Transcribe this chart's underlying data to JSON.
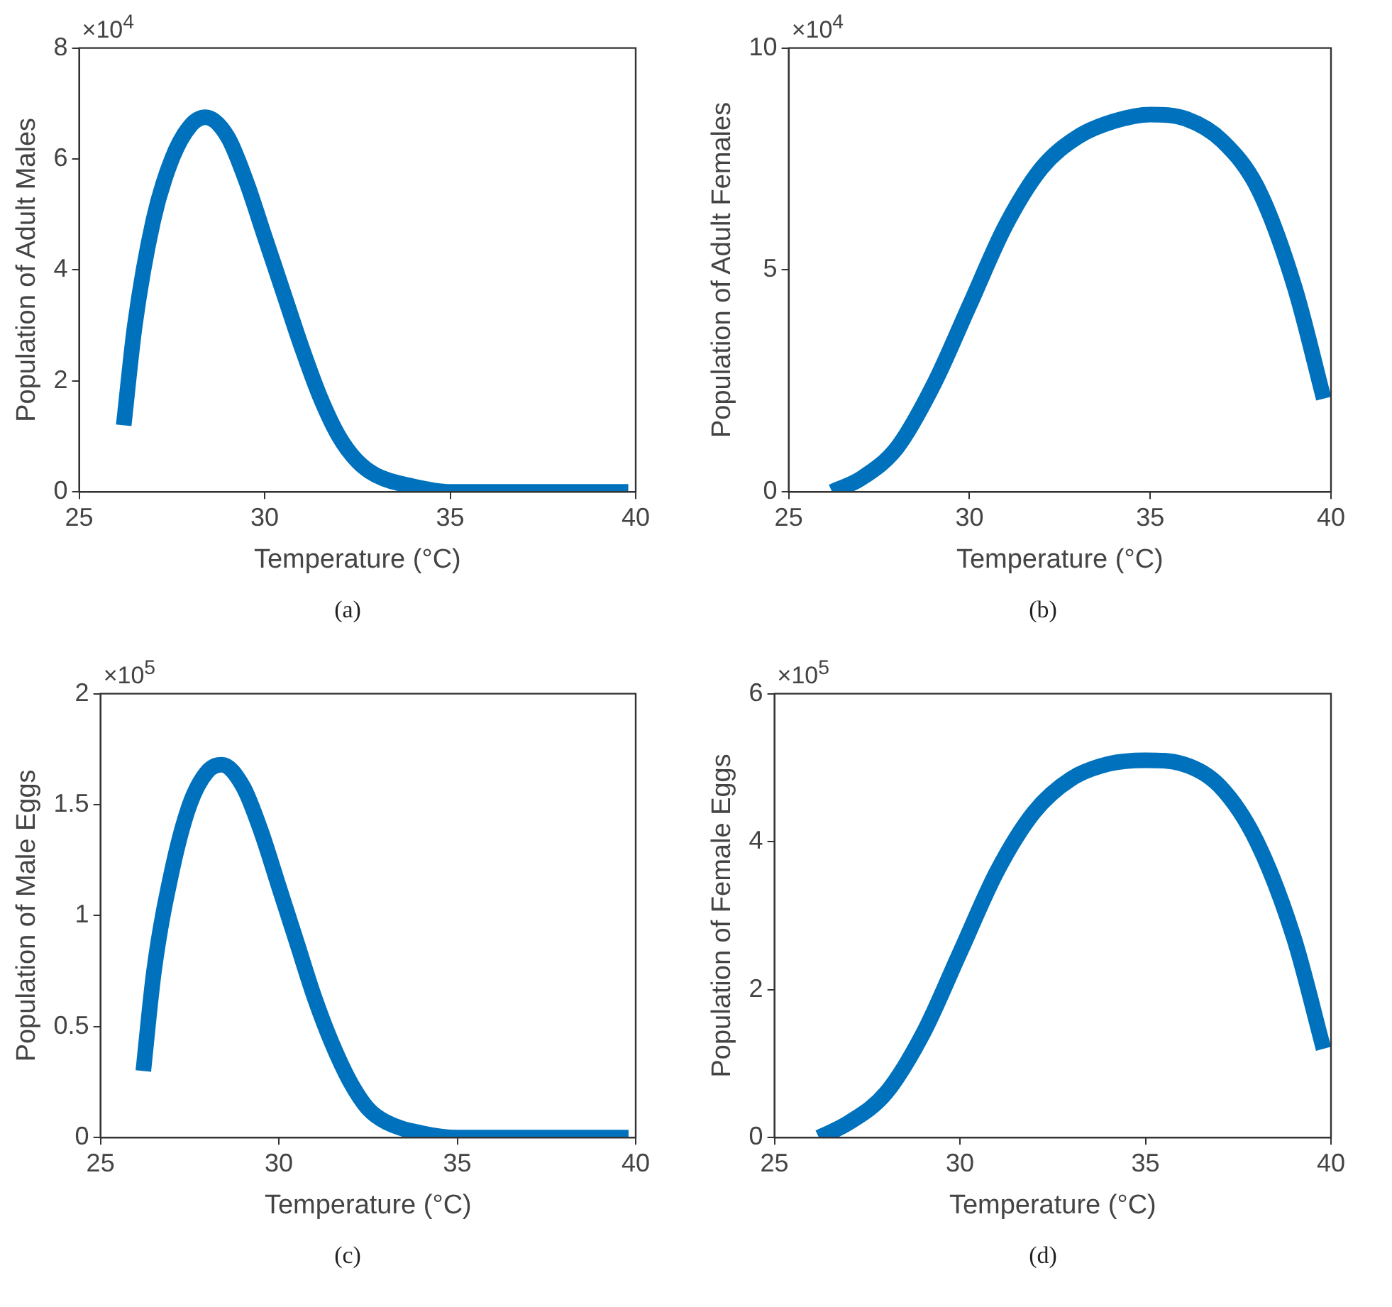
{
  "chart_data": [
    {
      "type": "line",
      "xlabel": "Temperature (°C)",
      "ylabel": "Population of Adult Males",
      "annotations": [
        "×10$^{4}$",
        "(a)"
      ],
      "xlim": [
        25,
        40
      ],
      "xticks": [
        25,
        30,
        35,
        40
      ],
      "ylim": [
        0,
        8
      ],
      "yticks": [
        0,
        2,
        4,
        6,
        8
      ],
      "grid": false,
      "legend": false,
      "marker": "none",
      "line_style": "solid",
      "series": [
        {
          "color": "#0072bd",
          "x": [
            26.2,
            26.5,
            27,
            27.5,
            28,
            28.4,
            29,
            29.5,
            30,
            30.5,
            31,
            31.5,
            32,
            32.5,
            33,
            34,
            35,
            36,
            38,
            39.8
          ],
          "values": [
            1.2,
            3.0,
            4.9,
            6.0,
            6.6,
            6.75,
            6.4,
            5.6,
            4.6,
            3.6,
            2.6,
            1.7,
            1.0,
            0.55,
            0.3,
            0.1,
            0,
            0,
            0,
            0
          ]
        }
      ]
    },
    {
      "type": "line",
      "xlabel": "Temperature (°C)",
      "ylabel": "Population of Adult Females",
      "annotations": [
        "×10$^{4}$",
        "(b)"
      ],
      "xlim": [
        25,
        40
      ],
      "xticks": [
        25,
        30,
        35,
        40
      ],
      "ylim": [
        0,
        10
      ],
      "yticks": [
        0,
        5,
        10
      ],
      "grid": false,
      "legend": false,
      "marker": "none",
      "line_style": "solid",
      "series": [
        {
          "color": "#0072bd",
          "x": [
            26.2,
            27,
            28,
            29,
            30,
            31,
            32,
            33,
            34,
            35,
            36,
            37,
            38,
            39,
            39.8
          ],
          "values": [
            0,
            0.3,
            1.0,
            2.4,
            4.2,
            6.0,
            7.3,
            8.0,
            8.35,
            8.5,
            8.4,
            7.9,
            6.8,
            4.6,
            2.1
          ]
        }
      ]
    },
    {
      "type": "line",
      "xlabel": "Temperature (°C)",
      "ylabel": "Population of Male Eggs",
      "annotations": [
        "×10$^{5}$",
        "(c)"
      ],
      "xlim": [
        25,
        40
      ],
      "xticks": [
        25,
        30,
        35,
        40
      ],
      "ylim": [
        0,
        2
      ],
      "yticks": [
        0,
        0.5,
        1,
        1.5,
        2
      ],
      "grid": false,
      "legend": false,
      "marker": "none",
      "line_style": "solid",
      "series": [
        {
          "color": "#0072bd",
          "x": [
            26.2,
            26.5,
            27,
            27.5,
            28,
            28.4,
            29,
            29.5,
            30,
            30.5,
            31,
            31.5,
            32,
            32.5,
            33,
            34,
            35,
            36,
            38,
            39.8
          ],
          "values": [
            0.3,
            0.75,
            1.2,
            1.5,
            1.65,
            1.68,
            1.58,
            1.38,
            1.13,
            0.88,
            0.63,
            0.42,
            0.25,
            0.13,
            0.07,
            0.02,
            0,
            0,
            0,
            0
          ]
        }
      ]
    },
    {
      "type": "line",
      "xlabel": "Temperature (°C)",
      "ylabel": "Population of Female Eggs",
      "annotations": [
        "×10$^{5}$",
        "(d)"
      ],
      "xlim": [
        25,
        40
      ],
      "xticks": [
        25,
        30,
        35,
        40
      ],
      "ylim": [
        0,
        6
      ],
      "yticks": [
        0,
        2,
        4,
        6
      ],
      "grid": false,
      "legend": false,
      "marker": "none",
      "line_style": "solid",
      "series": [
        {
          "color": "#0072bd",
          "x": [
            26.2,
            27,
            28,
            29,
            30,
            31,
            32,
            33,
            34,
            35,
            36,
            37,
            38,
            39,
            39.8
          ],
          "values": [
            0,
            0.2,
            0.6,
            1.4,
            2.5,
            3.6,
            4.4,
            4.85,
            5.05,
            5.1,
            5.05,
            4.75,
            4.0,
            2.7,
            1.2
          ]
        }
      ]
    }
  ]
}
